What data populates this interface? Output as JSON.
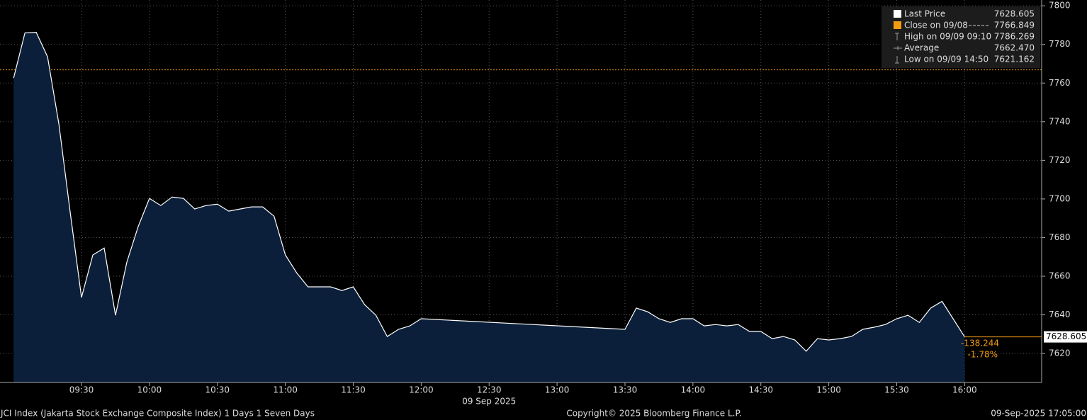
{
  "chart_data": {
    "type": "area",
    "x": [
      "09:00",
      "09:05",
      "09:10",
      "09:15",
      "09:20",
      "09:25",
      "09:30",
      "09:35",
      "09:40",
      "09:45",
      "09:50",
      "09:55",
      "10:00",
      "10:05",
      "10:10",
      "10:15",
      "10:20",
      "10:25",
      "10:30",
      "10:35",
      "10:40",
      "10:45",
      "10:50",
      "10:55",
      "11:00",
      "11:05",
      "11:10",
      "11:15",
      "11:20",
      "11:25",
      "11:30",
      "11:35",
      "11:40",
      "11:45",
      "11:50",
      "11:55",
      "12:00",
      "13:30",
      "13:35",
      "13:40",
      "13:45",
      "13:50",
      "13:55",
      "14:00",
      "14:05",
      "14:10",
      "14:15",
      "14:20",
      "14:25",
      "14:30",
      "14:35",
      "14:40",
      "14:45",
      "14:50",
      "14:55",
      "15:00",
      "15:05",
      "15:10",
      "15:15",
      "15:20",
      "15:25",
      "15:30",
      "15:35",
      "15:40",
      "15:45",
      "15:50",
      "16:00"
    ],
    "series": [
      {
        "name": "Last Price",
        "color": "#ffffff",
        "fill": "#0c1f3a",
        "values": [
          7762.6,
          7786.0,
          7786.269,
          7773.6,
          7738.8,
          7693.0,
          7649.0,
          7671.0,
          7674.6,
          7639.8,
          7667.3,
          7685.6,
          7700.3,
          7696.6,
          7701.0,
          7700.3,
          7694.8,
          7696.6,
          7697.3,
          7693.7,
          7694.8,
          7695.9,
          7695.9,
          7691.1,
          7671.0,
          7661.8,
          7654.5,
          7654.5,
          7654.5,
          7652.6,
          7654.5,
          7645.3,
          7639.8,
          7628.8,
          7632.5,
          7634.3,
          7638.0,
          7632.5,
          7643.5,
          7641.6,
          7638.0,
          7636.1,
          7638.0,
          7638.0,
          7634.3,
          7635.0,
          7634.3,
          7635.0,
          7631.4,
          7631.4,
          7627.7,
          7628.8,
          7627.0,
          7621.162,
          7627.7,
          7627.0,
          7627.7,
          7628.8,
          7632.5,
          7633.6,
          7635.0,
          7638.0,
          7639.8,
          7636.1,
          7643.5,
          7647.0,
          7628.605
        ]
      }
    ],
    "close": {
      "label": "Close on 09/08",
      "value": 7766.849,
      "color": "#f39c12"
    },
    "high": {
      "label": "High on 09/09 09:10",
      "value": 7786.269
    },
    "average": {
      "label": "Average",
      "value": 7662.47,
      "value_label": "7662.470"
    },
    "low": {
      "label": "Low on 09/09 14:50",
      "value": 7621.162
    },
    "change": -138.244,
    "change_pct": -1.78,
    "change_pct_label": "-1.78%",
    "xlim": [
      "08:54",
      "16:34"
    ],
    "xticks": [
      "09:30",
      "10:00",
      "10:30",
      "11:00",
      "11:30",
      "12:00",
      "12:30",
      "13:00",
      "13:30",
      "14:00",
      "14:30",
      "15:00",
      "15:30",
      "16:00"
    ],
    "date_label": "09 Sep 2025",
    "ylim": [
      7605,
      7803
    ],
    "yticks": [
      7620,
      7640,
      7660,
      7680,
      7700,
      7720,
      7740,
      7760,
      7780,
      7800
    ],
    "grid": true,
    "footer": {
      "left": "JCI Index (Jakarta Stock Exchange Composite Index) 1 Days 1 Seven Days",
      "center": "Copyright© 2025 Bloomberg Finance L.P.",
      "right": "09-Sep-2025 17:05:00"
    }
  }
}
